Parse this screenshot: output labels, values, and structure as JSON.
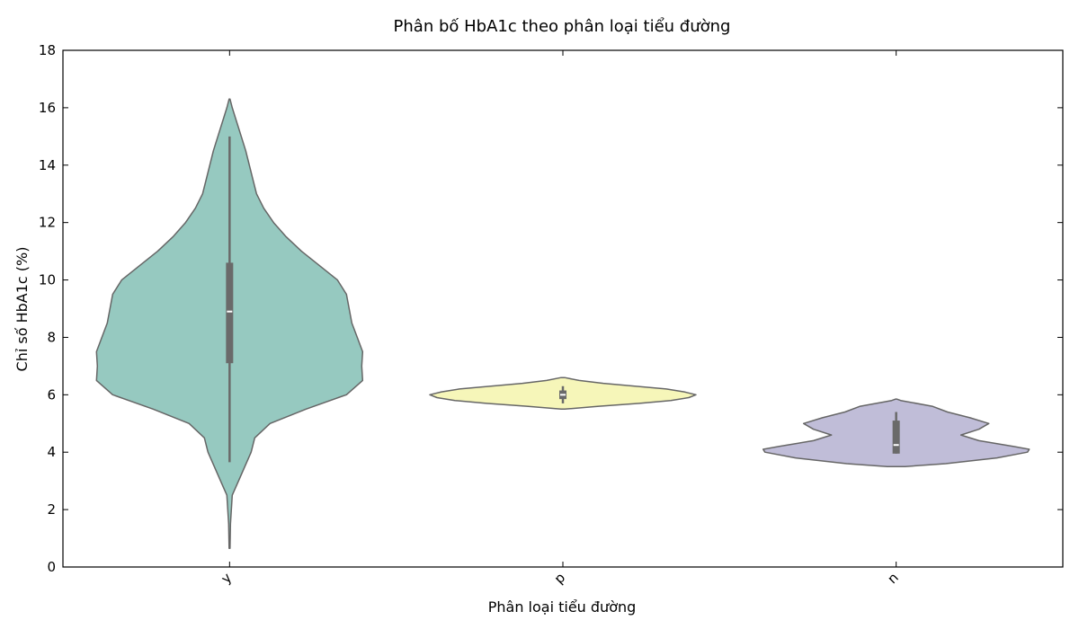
{
  "chart_data": {
    "type": "violin",
    "title": "Phân bố HbA1c theo phân loại tiểu đường",
    "xlabel": "Phân loại tiểu đường",
    "ylabel": "Chỉ số HbA1c (%)",
    "ylim": [
      0,
      18
    ],
    "yticks": [
      0,
      2,
      4,
      6,
      8,
      10,
      12,
      14,
      16,
      18
    ],
    "categories": [
      "y",
      "p",
      "n"
    ],
    "grid": false,
    "series": [
      {
        "category": "y",
        "color": "#96c9c0",
        "min": 3.65,
        "q1": 7.1,
        "median": 8.9,
        "q3": 10.6,
        "max": 15.0,
        "extent": [
          0.65,
          16.3
        ],
        "profile": [
          [
            0.65,
            0.5
          ],
          [
            1.5,
            1.0
          ],
          [
            2.5,
            3.0
          ],
          [
            3.0,
            10.0
          ],
          [
            3.5,
            17.0
          ],
          [
            4.0,
            24.0
          ],
          [
            4.5,
            28.0
          ],
          [
            5.0,
            45.0
          ],
          [
            5.5,
            85.0
          ],
          [
            6.0,
            130.0
          ],
          [
            6.5,
            148.0
          ],
          [
            7.0,
            147.0
          ],
          [
            7.5,
            148.0
          ],
          [
            8.0,
            142.0
          ],
          [
            8.5,
            136.0
          ],
          [
            9.0,
            133.0
          ],
          [
            9.5,
            130.0
          ],
          [
            10.0,
            120.0
          ],
          [
            10.5,
            100.0
          ],
          [
            11.0,
            80.0
          ],
          [
            11.5,
            63.0
          ],
          [
            12.0,
            49.0
          ],
          [
            12.5,
            38.0
          ],
          [
            13.0,
            30.0
          ],
          [
            13.5,
            26.0
          ],
          [
            14.0,
            22.0
          ],
          [
            14.5,
            18.0
          ],
          [
            15.0,
            13.0
          ],
          [
            15.5,
            8.0
          ],
          [
            16.0,
            3.0
          ],
          [
            16.3,
            0.5
          ]
        ]
      },
      {
        "category": "p",
        "color": "#f6f6b9",
        "min": 5.7,
        "q1": 5.85,
        "median": 6.0,
        "q3": 6.15,
        "max": 6.3,
        "extent": [
          5.5,
          6.6
        ],
        "profile": [
          [
            5.5,
            2.0
          ],
          [
            5.6,
            40.0
          ],
          [
            5.7,
            85.0
          ],
          [
            5.8,
            120.0
          ],
          [
            5.9,
            140.0
          ],
          [
            6.0,
            148.0
          ],
          [
            6.1,
            135.0
          ],
          [
            6.2,
            115.0
          ],
          [
            6.3,
            80.0
          ],
          [
            6.4,
            45.0
          ],
          [
            6.5,
            18.0
          ],
          [
            6.6,
            2.0
          ]
        ]
      },
      {
        "category": "n",
        "color": "#c0bdd8",
        "min": 3.95,
        "q1": 3.95,
        "median": 4.25,
        "q3": 5.1,
        "max": 5.4,
        "extent": [
          3.5,
          5.85
        ],
        "profile": [
          [
            3.5,
            10.0
          ],
          [
            3.6,
            55.0
          ],
          [
            3.8,
            112.0
          ],
          [
            4.0,
            146.0
          ],
          [
            4.1,
            148.0
          ],
          [
            4.2,
            130.0
          ],
          [
            4.4,
            92.0
          ],
          [
            4.6,
            72.0
          ],
          [
            4.8,
            92.0
          ],
          [
            5.0,
            103.0
          ],
          [
            5.2,
            82.0
          ],
          [
            5.4,
            57.0
          ],
          [
            5.6,
            40.0
          ],
          [
            5.8,
            5.0
          ],
          [
            5.85,
            0.5
          ]
        ]
      }
    ]
  }
}
